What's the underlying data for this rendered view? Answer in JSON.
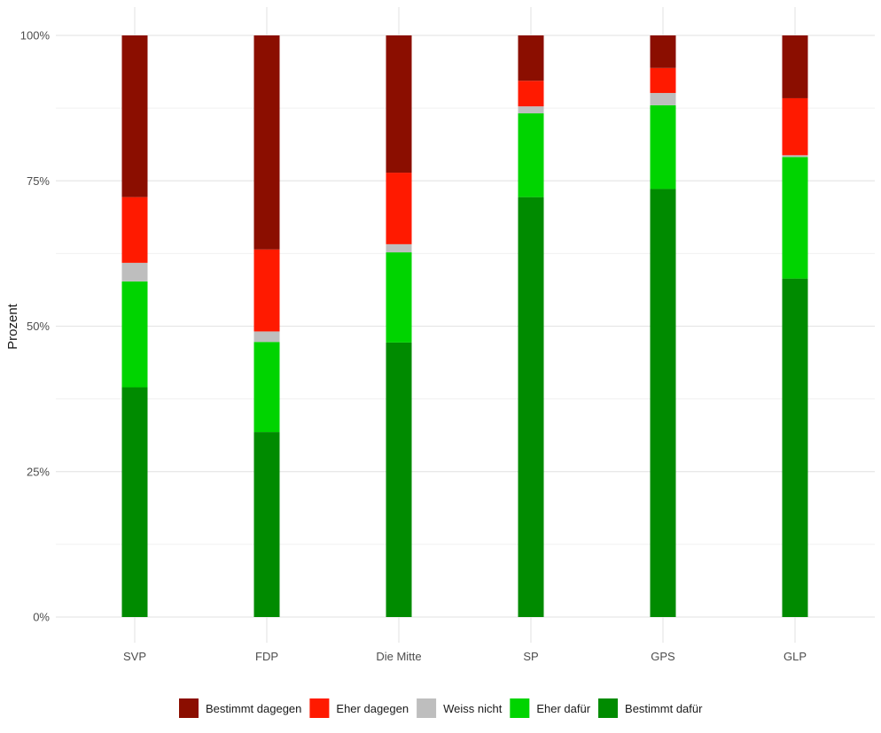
{
  "chart_data": {
    "type": "bar",
    "stacked": true,
    "xlabel": "",
    "ylabel": "Prozent",
    "ylim": [
      0,
      100
    ],
    "yticks": [
      "0%",
      "25%",
      "50%",
      "75%",
      "100%"
    ],
    "categories": [
      "SVP",
      "FDP",
      "Die Mitte",
      "SP",
      "GPS",
      "GLP"
    ],
    "series": [
      {
        "name": "Bestimmt dafür",
        "color": "#008B00",
        "values": [
          39.5,
          31.8,
          47.2,
          72.2,
          73.6,
          58.2
        ]
      },
      {
        "name": "Eher dafür",
        "color": "#00D400",
        "values": [
          18.2,
          15.5,
          15.5,
          14.4,
          14.4,
          20.9
        ]
      },
      {
        "name": "Weiss nicht",
        "color": "#BEBEBE",
        "values": [
          3.2,
          1.8,
          1.4,
          1.2,
          2.1,
          0.3
        ]
      },
      {
        "name": "Eher dagegen",
        "color": "#FF1A00",
        "values": [
          11.3,
          14.1,
          12.3,
          4.4,
          4.3,
          9.8
        ]
      },
      {
        "name": "Bestimmt dagegen",
        "color": "#8B0E00",
        "values": [
          27.8,
          36.8,
          23.6,
          7.8,
          5.6,
          10.8
        ]
      }
    ],
    "legend_order": [
      "Bestimmt dagegen",
      "Eher dagegen",
      "Weiss nicht",
      "Eher dafür",
      "Bestimmt dafür"
    ],
    "legend_position": "bottom",
    "grid": true
  }
}
